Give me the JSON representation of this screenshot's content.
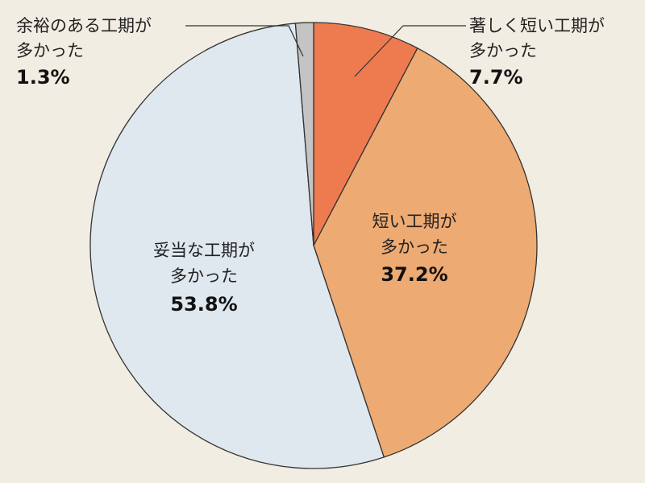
{
  "chart_data": {
    "type": "pie",
    "title": "",
    "start_angle": "top",
    "direction": "clockwise",
    "slices": [
      {
        "label_lines": [
          "著しく短い工期が",
          "多かった"
        ],
        "value": 7.7,
        "value_text": "7.7%",
        "color": "#ee7b50"
      },
      {
        "label_lines": [
          "短い工期が",
          "多かった"
        ],
        "value": 37.2,
        "value_text": "37.2%",
        "color": "#edaa72"
      },
      {
        "label_lines": [
          "妥当な工期が",
          "多かった"
        ],
        "value": 53.8,
        "value_text": "53.8%",
        "color": "#dfe7ef"
      },
      {
        "label_lines": [
          "余裕のある工期が",
          "多かった"
        ],
        "value": 1.3,
        "value_text": "1.3%",
        "color": "#c4c4c4"
      }
    ]
  }
}
